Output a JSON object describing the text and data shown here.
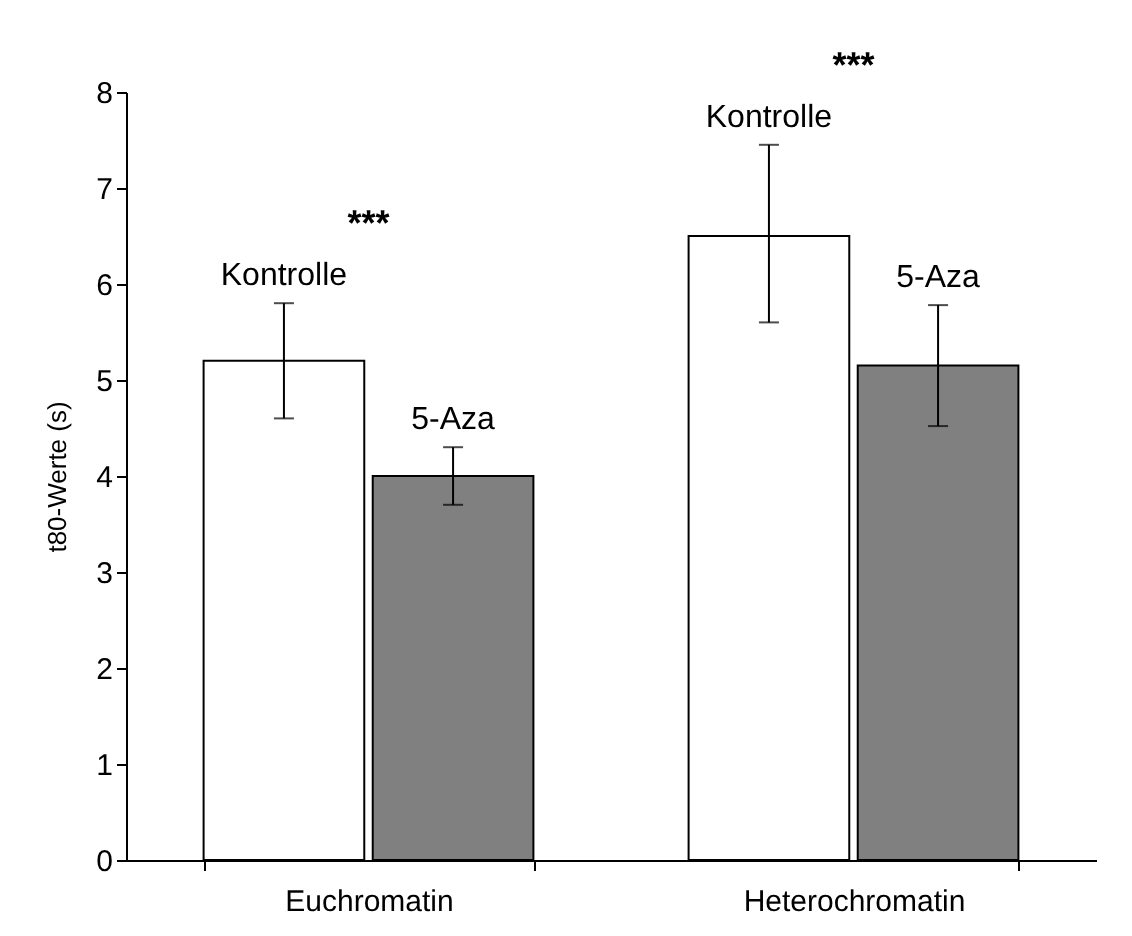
{
  "chart_data": {
    "type": "bar",
    "ylabel": "t80-Werte (s)",
    "categories": [
      "Euchromatin",
      "Heterochromatin"
    ],
    "series": [
      {
        "name": "Kontrolle",
        "color": "#ffffff",
        "values": [
          5.2,
          6.5
        ],
        "errors": [
          0.6,
          [
            5.6,
            7.45
          ]
        ]
      },
      {
        "name": "5-Aza",
        "color": "#808080",
        "values": [
          4.0,
          5.15
        ],
        "errors": [
          0.3,
          0.63
        ]
      }
    ],
    "ylim": [
      0,
      8
    ],
    "yticks": [
      0,
      1,
      2,
      3,
      4,
      5,
      6,
      7,
      8
    ],
    "grid": false,
    "legend": false,
    "annotations": [
      "***",
      "***"
    ]
  }
}
